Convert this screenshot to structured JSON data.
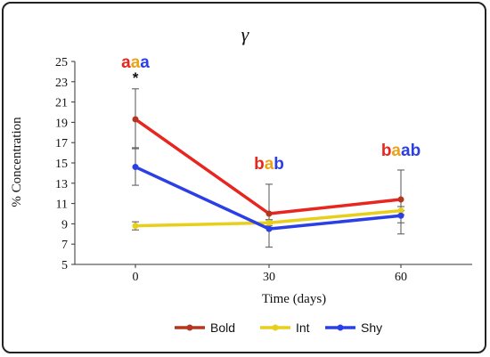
{
  "chart_data": {
    "type": "line",
    "title": "γ",
    "xlabel": "Time (days)",
    "ylabel": "% Concentration",
    "x": [
      0,
      30,
      60
    ],
    "x_tick_labels": [
      "0",
      "30",
      "60"
    ],
    "y_ticks": [
      5,
      7,
      9,
      11,
      13,
      15,
      17,
      19,
      21,
      23,
      25
    ],
    "ylim": [
      5,
      25
    ],
    "grid": false,
    "legend_position": "bottom",
    "series": [
      {
        "name": "Bold",
        "color": "#e8251f",
        "marker_color": "#b5361f",
        "legend_color": "#b5361f",
        "values": [
          19.3,
          10.0,
          11.4
        ],
        "err_upper": [
          22.3,
          12.9,
          14.3
        ],
        "err_lower": [
          16.5,
          9.4,
          9.1
        ]
      },
      {
        "name": "Int",
        "color": "#e8cf1a",
        "marker_color": "#e8cf1a",
        "legend_color": "#e8cf1a",
        "values": [
          8.8,
          9.1,
          10.3
        ],
        "err_upper": [
          9.2,
          9.4,
          10.7
        ],
        "err_lower": [
          8.4,
          8.8,
          9.9
        ]
      },
      {
        "name": "Shy",
        "color": "#2b3fe6",
        "marker_color": "#2b3fe6",
        "legend_color": "#2b3fe6",
        "values": [
          14.6,
          8.5,
          9.8
        ],
        "err_upper": [
          16.4,
          9.0,
          10.3
        ],
        "err_lower": [
          12.8,
          6.7,
          8.0
        ]
      }
    ],
    "annotations": [
      {
        "x": 0,
        "y": 24.4,
        "letters": [
          {
            "text": "a",
            "color": "#e8251f"
          },
          {
            "text": "a",
            "color": "#e8a41a"
          },
          {
            "text": "a",
            "color": "#2b3fe6"
          }
        ]
      },
      {
        "x": 0,
        "y": 22.9,
        "letters": [
          {
            "text": "*",
            "color": "#111111"
          }
        ]
      },
      {
        "x": 30,
        "y": 14.4,
        "letters": [
          {
            "text": "b",
            "color": "#e8251f"
          },
          {
            "text": "a",
            "color": "#e8a41a"
          },
          {
            "text": "b",
            "color": "#2b3fe6"
          }
        ]
      },
      {
        "x": 60,
        "y": 15.7,
        "letters": [
          {
            "text": "b",
            "color": "#e8251f"
          },
          {
            "text": "a",
            "color": "#e8a41a"
          },
          {
            "text": "ab",
            "color": "#2b3fe6"
          }
        ]
      }
    ]
  }
}
